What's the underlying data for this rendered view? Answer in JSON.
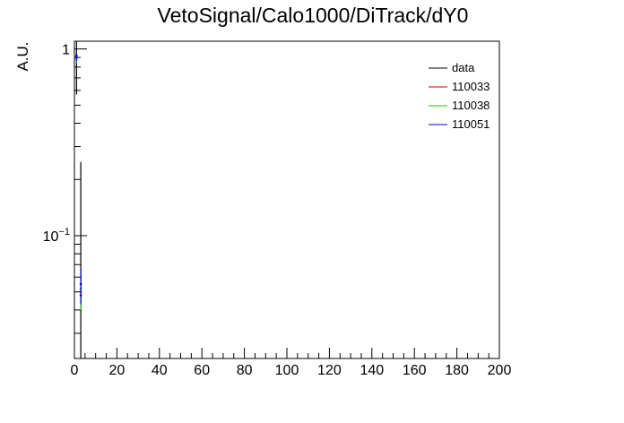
{
  "chart_data": {
    "type": "line",
    "title": "VetoSignal/Calo1000/DiTrack/dY0",
    "xlabel": "",
    "ylabel": "A.U.",
    "xlim": [
      0,
      200
    ],
    "ylim": [
      0.022,
      1.1
    ],
    "yscale": "log",
    "x_tick_labels": [
      "0",
      "20",
      "40",
      "60",
      "80",
      "100",
      "120",
      "140",
      "160",
      "180",
      "200"
    ],
    "y_tick_labels": [
      {
        "value": 1,
        "base": "1",
        "exp": ""
      },
      {
        "value": 0.1,
        "base": "10",
        "exp": "−1"
      }
    ],
    "grid": false,
    "legend_position": "top-right",
    "series": [
      {
        "name": "data",
        "color": "#000000",
        "points": [
          {
            "x": 1,
            "y": 0.92,
            "err": 0.35
          },
          {
            "x": 3,
            "y": 0.048,
            "err": 0.2
          }
        ]
      },
      {
        "name": "110033",
        "color": "#cc0000",
        "points": [
          {
            "x": 1,
            "y": 0.9,
            "err": 0.05
          },
          {
            "x": 3,
            "y": 0.05,
            "err": 0.01
          }
        ]
      },
      {
        "name": "110038",
        "color": "#00cc00",
        "points": [
          {
            "x": 1,
            "y": 0.89,
            "err": 0.05
          },
          {
            "x": 3,
            "y": 0.052,
            "err": 0.012
          }
        ]
      },
      {
        "name": "110051",
        "color": "#0000cc",
        "points": [
          {
            "x": 1,
            "y": 0.91,
            "err": 0.05
          },
          {
            "x": 3,
            "y": 0.055,
            "err": 0.012
          }
        ]
      }
    ]
  }
}
